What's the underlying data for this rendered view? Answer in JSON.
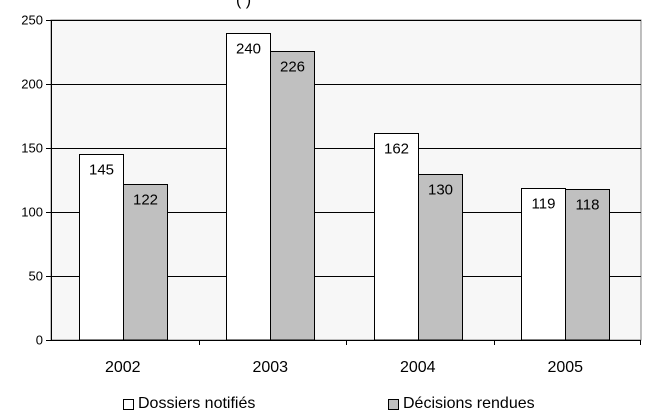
{
  "chart_data": {
    "type": "bar",
    "title_fragment": "(                    )",
    "categories": [
      "2002",
      "2003",
      "2004",
      "2005"
    ],
    "series": [
      {
        "name": "Dossiers notifiés",
        "values": [
          145,
          240,
          162,
          119
        ],
        "color": "#ffffff"
      },
      {
        "name": "Décisions rendues",
        "values": [
          122,
          226,
          130,
          118
        ],
        "color": "#c0c0c0"
      }
    ],
    "ylim": [
      0,
      250
    ],
    "yticks": [
      0,
      50,
      100,
      150,
      200,
      250
    ],
    "grid": true,
    "plot_background": "#f7f7f7",
    "legend_position": "bottom"
  }
}
